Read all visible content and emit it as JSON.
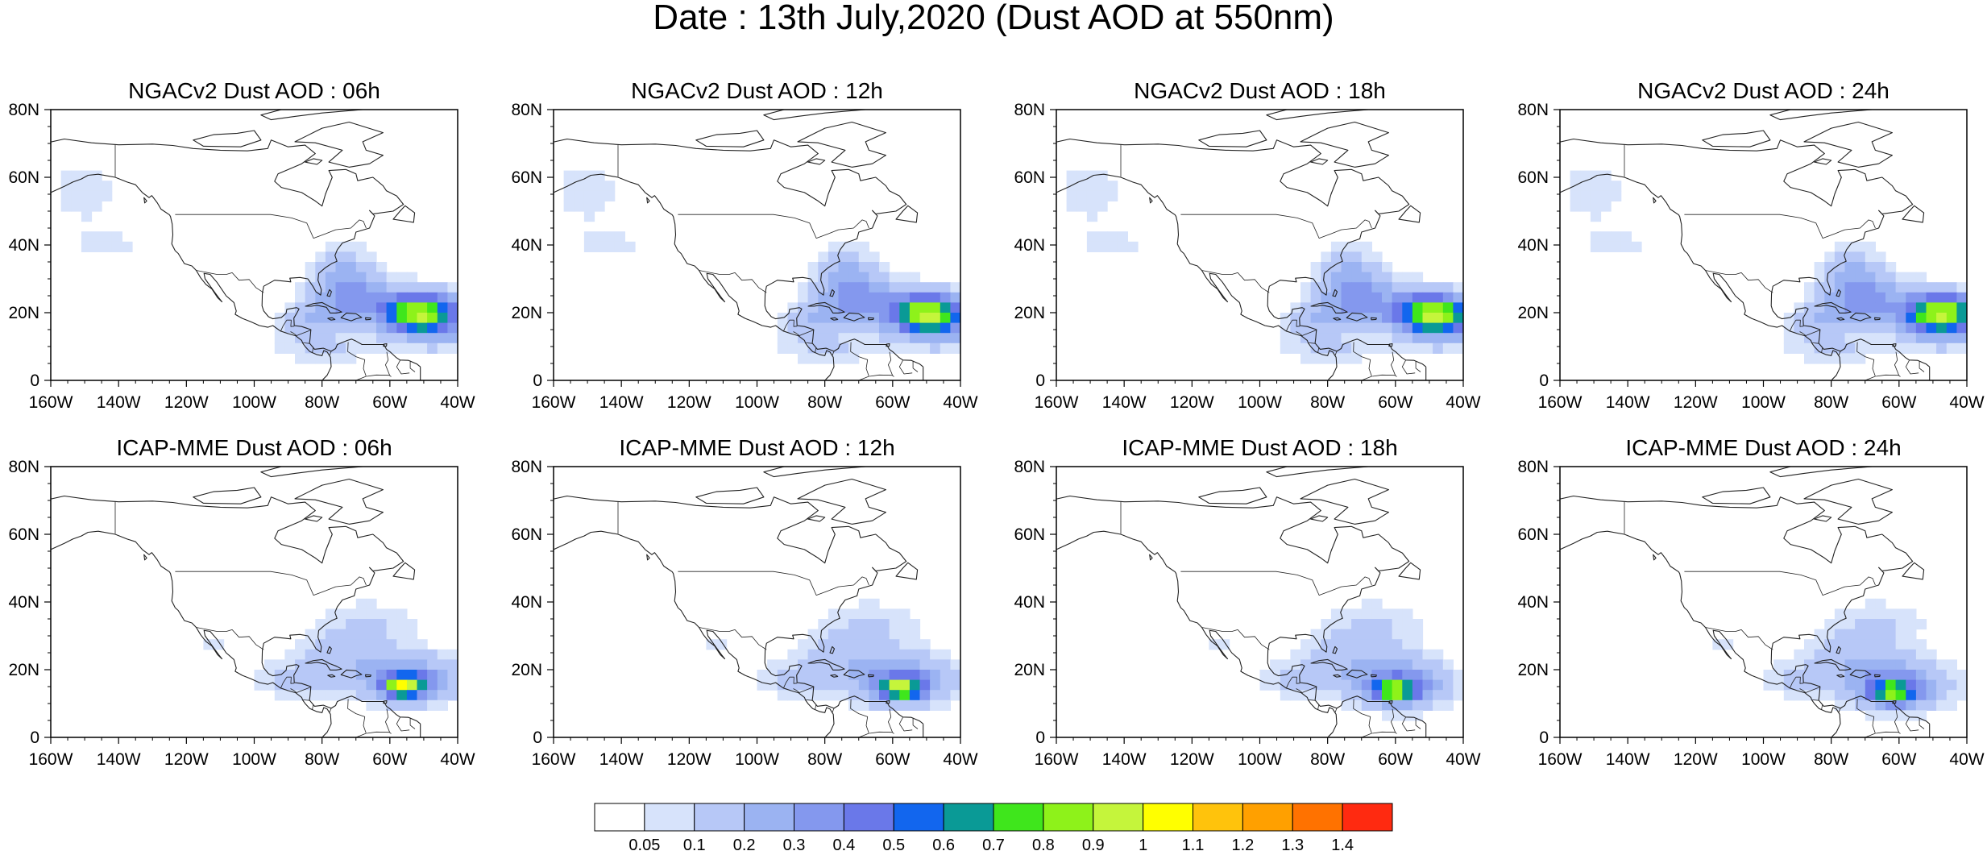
{
  "title": "Date : 13th July,2020 (Dust AOD at 550nm)",
  "map_extent": {
    "lon": [
      -160,
      -40
    ],
    "lat": [
      0,
      80
    ]
  },
  "lon_ticks": [
    "160W",
    "140W",
    "120W",
    "100W",
    "80W",
    "60W",
    "40W"
  ],
  "lat_ticks": [
    "0",
    "20N",
    "40N",
    "60N",
    "80N"
  ],
  "panels": [
    {
      "title": "NGACv2 Dust AOD : 06h",
      "model": "NGACv2",
      "hour": "06h"
    },
    {
      "title": "NGACv2 Dust AOD : 12h",
      "model": "NGACv2",
      "hour": "12h"
    },
    {
      "title": "NGACv2 Dust AOD : 18h",
      "model": "NGACv2",
      "hour": "18h"
    },
    {
      "title": "NGACv2 Dust AOD : 24h",
      "model": "NGACv2",
      "hour": "24h"
    },
    {
      "title": "ICAP-MME Dust AOD : 06h",
      "model": "ICAP-MME",
      "hour": "06h"
    },
    {
      "title": "ICAP-MME Dust AOD : 12h",
      "model": "ICAP-MME",
      "hour": "12h"
    },
    {
      "title": "ICAP-MME Dust AOD : 18h",
      "model": "ICAP-MME",
      "hour": "18h"
    },
    {
      "title": "ICAP-MME Dust AOD : 24h",
      "model": "ICAP-MME",
      "hour": "24h"
    }
  ],
  "colorbar": {
    "labels": [
      "0.05",
      "0.1",
      "0.2",
      "0.3",
      "0.4",
      "0.5",
      "0.6",
      "0.7",
      "0.8",
      "0.9",
      "1",
      "1.1",
      "1.2",
      "1.3",
      "1.4"
    ],
    "colors": [
      "#ffffff",
      "#d7e3fb",
      "#b7c8f7",
      "#9bb3f2",
      "#8498ee",
      "#6a78e9",
      "#1266ee",
      "#0a9a96",
      "#3fe61c",
      "#8ef21a",
      "#c5f53b",
      "#ffff00",
      "#ffc30c",
      "#ffa000",
      "#ff7200",
      "#ff2a10"
    ]
  }
}
